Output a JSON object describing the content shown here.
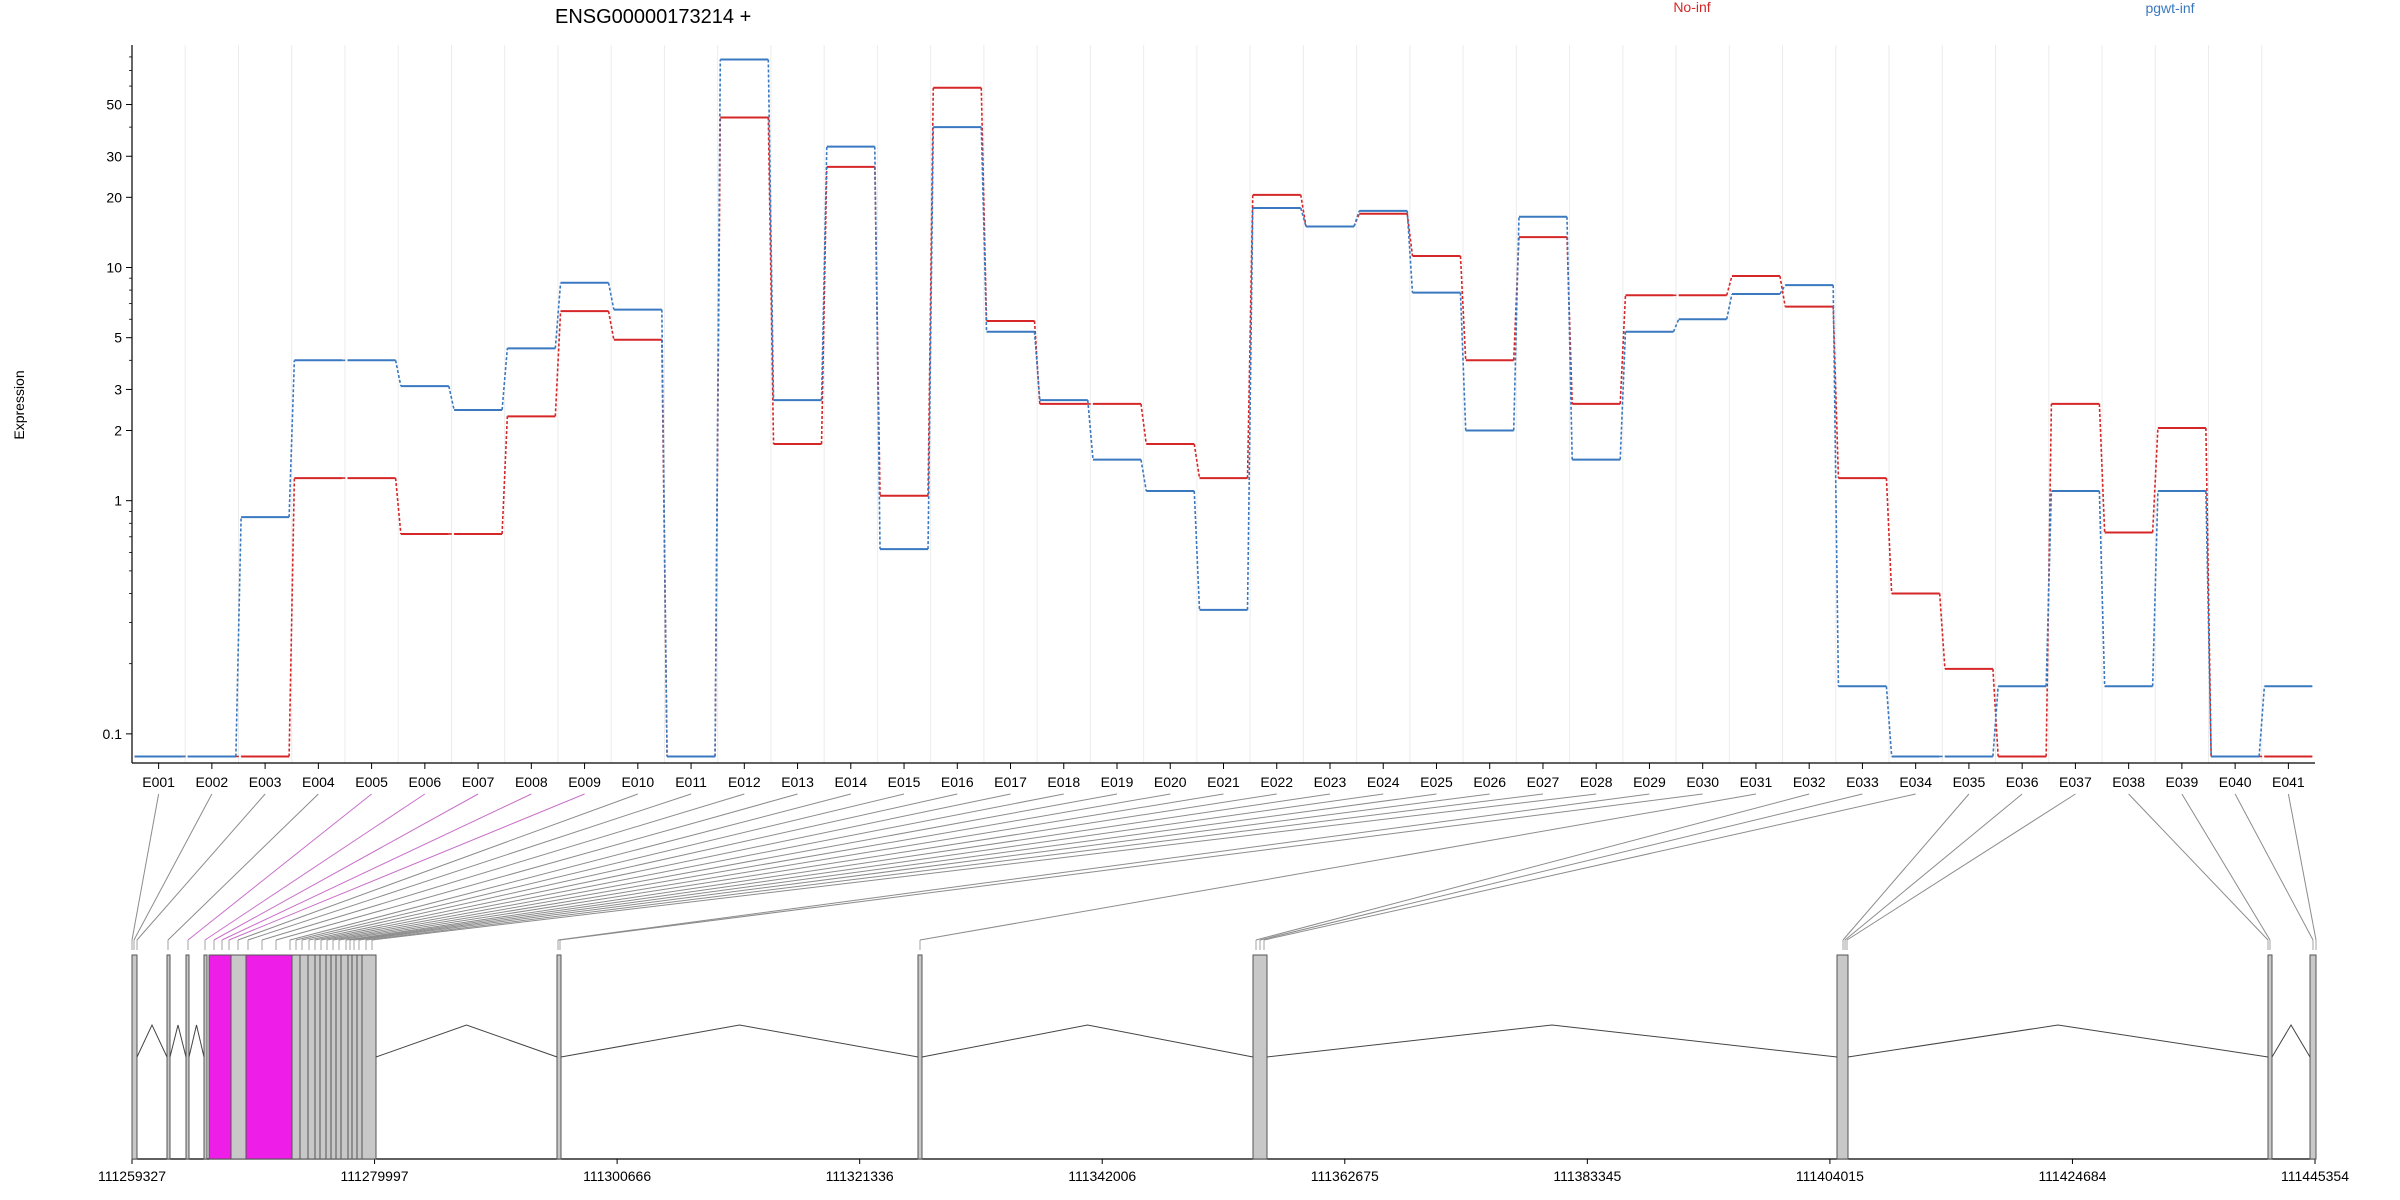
{
  "chart_data": {
    "type": "line",
    "title": "ENSG00000173214 +",
    "ylabel": "Expression",
    "xlabel": "",
    "y_scale": "log",
    "ylim": [
      0.075,
      90
    ],
    "y_ticks": [
      0.1,
      1,
      2,
      3,
      5,
      10,
      20,
      30,
      50
    ],
    "y_tick_labels": [
      "0.1",
      "1",
      "2",
      "3",
      "5",
      "10",
      "20",
      "30",
      "50"
    ],
    "grid": true,
    "legend_position": "top",
    "categories": [
      "E001",
      "E002",
      "E003",
      "E004",
      "E005",
      "E006",
      "E007",
      "E008",
      "E009",
      "E010",
      "E011",
      "E012",
      "E013",
      "E014",
      "E015",
      "E016",
      "E017",
      "E018",
      "E019",
      "E020",
      "E021",
      "E022",
      "E023",
      "E024",
      "E025",
      "E026",
      "E027",
      "E028",
      "E029",
      "E030",
      "E031",
      "E032",
      "E033",
      "E034",
      "E035",
      "E036",
      "E037",
      "E038",
      "E039",
      "E040",
      "E041"
    ],
    "series": [
      {
        "name": "No-inf",
        "color": "#d62728",
        "values": [
          0.08,
          0.08,
          0.08,
          1.25,
          1.25,
          0.72,
          0.72,
          2.3,
          6.5,
          4.9,
          0.08,
          44,
          1.75,
          27,
          1.05,
          59,
          5.9,
          2.6,
          2.6,
          1.75,
          1.25,
          20.5,
          15,
          17,
          11.2,
          4,
          13.5,
          2.6,
          7.6,
          7.6,
          9.2,
          6.8,
          1.25,
          0.4,
          0.19,
          0.08,
          2.6,
          0.73,
          2.05,
          0.08,
          0.08
        ]
      },
      {
        "name": "pgwt-inf",
        "color": "#3a78c0",
        "values": [
          0.08,
          0.08,
          0.85,
          4,
          4,
          3.1,
          2.45,
          4.5,
          8.6,
          6.6,
          0.08,
          78,
          2.7,
          33,
          0.62,
          40,
          5.3,
          2.7,
          1.5,
          1.1,
          0.34,
          18,
          15,
          17.5,
          7.8,
          2,
          16.5,
          1.5,
          5.3,
          6,
          7.7,
          8.4,
          0.16,
          0.08,
          0.08,
          0.16,
          1.1,
          0.16,
          1.1,
          0.08,
          0.16
        ]
      }
    ],
    "genome": {
      "ticks": [
        "111259327",
        "111279997",
        "111300666",
        "111321336",
        "111342006",
        "111362675",
        "111383345",
        "111404015",
        "111424684",
        "111445354"
      ],
      "exon_colors": {
        "default": "#c8c8c8",
        "highlighted": "#ee1ee8",
        "edge": "#555555"
      }
    }
  }
}
